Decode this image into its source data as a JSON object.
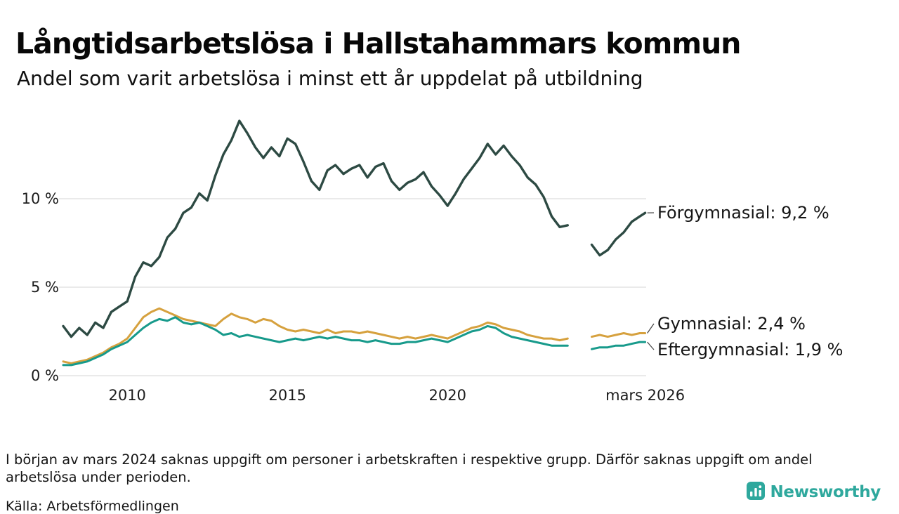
{
  "header": {
    "title": "Långtidsarbetslösa i Hallstahammars kommun",
    "subtitle": "Andel som varit arbetslösa i minst ett år uppdelat på utbildning"
  },
  "chart_data": {
    "type": "line",
    "title": "Långtidsarbetslösa i Hallstahammars kommun",
    "xlabel": "",
    "ylabel": "",
    "xlim": [
      2008,
      2026.2
    ],
    "ylim": [
      0,
      15.5
    ],
    "grid": "horizontal",
    "legend_position": "right-of-line-ends",
    "x": [
      2008,
      2008.25,
      2008.5,
      2008.75,
      2009,
      2009.25,
      2009.5,
      2009.75,
      2010,
      2010.25,
      2010.5,
      2010.75,
      2011,
      2011.25,
      2011.5,
      2011.75,
      2012,
      2012.25,
      2012.5,
      2012.75,
      2013,
      2013.25,
      2013.5,
      2013.75,
      2014,
      2014.25,
      2014.5,
      2014.75,
      2015,
      2015.25,
      2015.5,
      2015.75,
      2016,
      2016.25,
      2016.5,
      2016.75,
      2017,
      2017.25,
      2017.5,
      2017.75,
      2018,
      2018.25,
      2018.5,
      2018.75,
      2019,
      2019.25,
      2019.5,
      2019.75,
      2020,
      2020.25,
      2020.5,
      2020.75,
      2021,
      2021.25,
      2021.5,
      2021.75,
      2022,
      2022.25,
      2022.5,
      2022.75,
      2023,
      2023.25,
      2023.5,
      2023.75,
      2024,
      2024.25,
      2024.5,
      2024.75,
      2025,
      2025.25,
      2025.5,
      2025.75,
      2026,
      2026.17
    ],
    "series": [
      {
        "name": "Förgymnasial",
        "label": "Förgymnasial: 9,2 %",
        "end_value": "9,2 %",
        "color": "#2d4a43",
        "values": [
          2.8,
          2.2,
          2.7,
          2.3,
          3.0,
          2.7,
          3.6,
          3.9,
          4.2,
          5.6,
          6.4,
          6.2,
          6.7,
          7.8,
          8.3,
          9.2,
          9.5,
          10.3,
          9.9,
          11.3,
          12.5,
          13.3,
          14.4,
          13.7,
          12.9,
          12.3,
          12.9,
          12.4,
          13.4,
          13.1,
          12.1,
          11.0,
          10.5,
          11.6,
          11.9,
          11.4,
          11.7,
          11.9,
          11.2,
          11.8,
          12.0,
          11.0,
          10.5,
          10.9,
          11.1,
          11.5,
          10.7,
          10.2,
          9.6,
          10.3,
          11.1,
          11.7,
          12.3,
          13.1,
          12.5,
          13.0,
          12.4,
          11.9,
          11.2,
          10.8,
          10.1,
          9.0,
          8.4,
          8.5,
          null,
          null,
          7.4,
          6.8,
          7.1,
          7.7,
          8.1,
          8.7,
          9.0,
          9.2
        ]
      },
      {
        "name": "Gymnasial",
        "label": "Gymnasial: 2,4 %",
        "end_value": "2,4 %",
        "color": "#d6a13e",
        "values": [
          0.8,
          0.7,
          0.8,
          0.9,
          1.1,
          1.3,
          1.6,
          1.8,
          2.1,
          2.7,
          3.3,
          3.6,
          3.8,
          3.6,
          3.4,
          3.2,
          3.1,
          3.0,
          2.9,
          2.8,
          3.2,
          3.5,
          3.3,
          3.2,
          3.0,
          3.2,
          3.1,
          2.8,
          2.6,
          2.5,
          2.6,
          2.5,
          2.4,
          2.6,
          2.4,
          2.5,
          2.5,
          2.4,
          2.5,
          2.4,
          2.3,
          2.2,
          2.1,
          2.2,
          2.1,
          2.2,
          2.3,
          2.2,
          2.1,
          2.3,
          2.5,
          2.7,
          2.8,
          3.0,
          2.9,
          2.7,
          2.6,
          2.5,
          2.3,
          2.2,
          2.1,
          2.1,
          2.0,
          2.1,
          null,
          null,
          2.2,
          2.3,
          2.2,
          2.3,
          2.4,
          2.3,
          2.4,
          2.4
        ]
      },
      {
        "name": "Eftergymnasial",
        "label": "Eftergymnasial: 1,9 %",
        "end_value": "1,9 %",
        "color": "#179a8b",
        "values": [
          0.6,
          0.6,
          0.7,
          0.8,
          1.0,
          1.2,
          1.5,
          1.7,
          1.9,
          2.3,
          2.7,
          3.0,
          3.2,
          3.1,
          3.3,
          3.0,
          2.9,
          3.0,
          2.8,
          2.6,
          2.3,
          2.4,
          2.2,
          2.3,
          2.2,
          2.1,
          2.0,
          1.9,
          2.0,
          2.1,
          2.0,
          2.1,
          2.2,
          2.1,
          2.2,
          2.1,
          2.0,
          2.0,
          1.9,
          2.0,
          1.9,
          1.8,
          1.8,
          1.9,
          1.9,
          2.0,
          2.1,
          2.0,
          1.9,
          2.1,
          2.3,
          2.5,
          2.6,
          2.8,
          2.7,
          2.4,
          2.2,
          2.1,
          2.0,
          1.9,
          1.8,
          1.7,
          1.7,
          1.7,
          null,
          null,
          1.5,
          1.6,
          1.6,
          1.7,
          1.7,
          1.8,
          1.9,
          1.9
        ]
      }
    ],
    "y_ticks": [
      {
        "value": 10,
        "label": "10 %"
      },
      {
        "value": 5,
        "label": "5 %"
      },
      {
        "value": 0,
        "label": "0 %"
      }
    ],
    "x_ticks": [
      {
        "value": 2010,
        "label": "2010"
      },
      {
        "value": 2015,
        "label": "2015"
      },
      {
        "value": 2020,
        "label": "2020"
      },
      {
        "value": 2026.17,
        "label": "mars 2026"
      }
    ]
  },
  "footnote": "I början av mars 2024 saknas uppgift om personer i arbetskraften i respektive grupp. Därför saknas uppgift om andel arbetslösa under perioden.",
  "source": "Källa: Arbetsförmedlingen",
  "branding": {
    "logo_text": "Newsworthy",
    "logo_icon": "bar-chart-icon",
    "color": "#2ea89d"
  }
}
